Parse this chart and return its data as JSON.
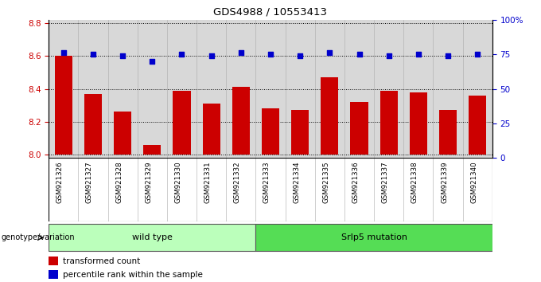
{
  "title": "GDS4988 / 10553413",
  "samples": [
    "GSM921326",
    "GSM921327",
    "GSM921328",
    "GSM921329",
    "GSM921330",
    "GSM921331",
    "GSM921332",
    "GSM921333",
    "GSM921334",
    "GSM921335",
    "GSM921336",
    "GSM921337",
    "GSM921338",
    "GSM921339",
    "GSM921340"
  ],
  "transformed_count": [
    8.6,
    8.37,
    8.26,
    8.06,
    8.39,
    8.31,
    8.41,
    8.28,
    8.27,
    8.47,
    8.32,
    8.39,
    8.38,
    8.27,
    8.36
  ],
  "percentile_rank": [
    76,
    75,
    74,
    70,
    75,
    74,
    76,
    75,
    74,
    76,
    75,
    74,
    75,
    74,
    75
  ],
  "bar_color": "#cc0000",
  "dot_color": "#0000cc",
  "ylim_left": [
    7.98,
    8.82
  ],
  "ylim_right": [
    0,
    100
  ],
  "yticks_left": [
    8.0,
    8.2,
    8.4,
    8.6,
    8.8
  ],
  "yticks_right": [
    0,
    25,
    50,
    75,
    100
  ],
  "ytick_labels_right": [
    "0",
    "25",
    "50",
    "75",
    "100%"
  ],
  "group1_label": "wild type",
  "group2_label": "Srlp5 mutation",
  "group1_count": 7,
  "group2_count": 8,
  "group1_color": "#bbffbb",
  "group2_color": "#55dd55",
  "genotype_label": "genotype/variation",
  "legend_bar_label": "transformed count",
  "legend_dot_label": "percentile rank within the sample",
  "left_tick_color": "#cc0000",
  "right_tick_color": "#0000cc",
  "bar_baseline": 8.0,
  "bg_color": "#ffffff",
  "plot_bg_color": "#d8d8d8"
}
